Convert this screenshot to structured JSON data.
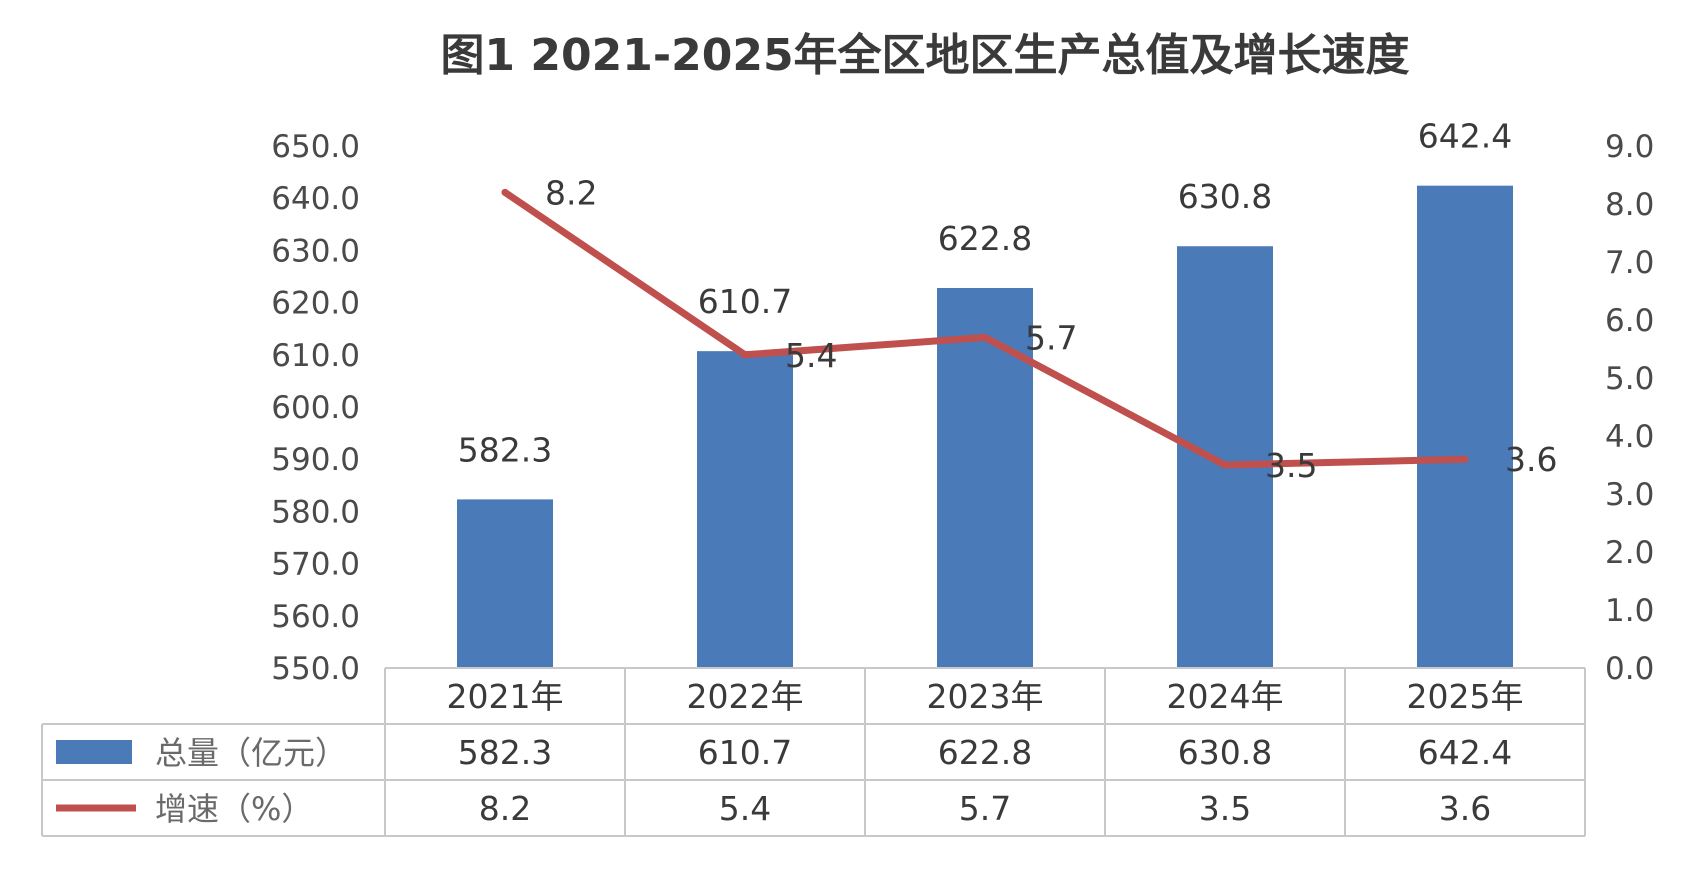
{
  "chart_data": {
    "type": "bar",
    "title": "图1  2021-2025年全区地区生产总值及增长速度",
    "categories": [
      "2021年",
      "2022年",
      "2023年",
      "2024年",
      "2025年"
    ],
    "series": [
      {
        "name": "总量（亿元）",
        "type": "bar",
        "axis": "left",
        "color": "#4a7ab8",
        "values": [
          582.3,
          610.7,
          622.8,
          630.8,
          642.4
        ]
      },
      {
        "name": "增速（%）",
        "type": "line",
        "axis": "right",
        "color": "#c0504d",
        "values": [
          8.2,
          5.4,
          5.7,
          3.5,
          3.6
        ]
      }
    ],
    "ylim_left": [
      550,
      650
    ],
    "yticks_left": [
      "650.0",
      "640.0",
      "630.0",
      "620.0",
      "610.0",
      "600.0",
      "590.0",
      "580.0",
      "570.0",
      "560.0",
      "550.0"
    ],
    "ylim_right": [
      0,
      9
    ],
    "yticks_right": [
      "9.0",
      "8.0",
      "7.0",
      "6.0",
      "5.0",
      "4.0",
      "3.0",
      "2.0",
      "1.0",
      "0.0"
    ],
    "data_labels_bar": [
      "582.3",
      "610.7",
      "622.8",
      "630.8",
      "642.4"
    ],
    "data_labels_line": [
      "8.2",
      "5.4",
      "5.7",
      "3.5",
      "3.6"
    ],
    "data_table": true,
    "grid": false
  }
}
